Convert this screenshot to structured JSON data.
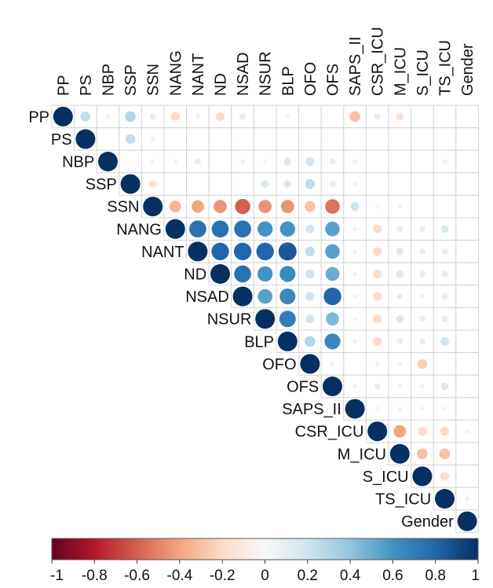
{
  "chart_data": {
    "type": "heatmap",
    "subtype": "correlation-matrix-upper-triangle",
    "variables": [
      "PP",
      "PS",
      "NBP",
      "SSP",
      "SSN",
      "NANG",
      "NANT",
      "ND",
      "NSAD",
      "NSUR",
      "BLP",
      "OFO",
      "OFS",
      "SAPS_II",
      "CSR_ICU",
      "M_ICU",
      "S_ICU",
      "TS_ICU",
      "Gender"
    ],
    "marker": "circle",
    "color_scale": {
      "range": [
        -1,
        1
      ],
      "ticks": [
        "-1",
        "-0.8",
        "-0.6",
        "-0.4",
        "-0.2",
        "0",
        "0.2",
        "0.4",
        "0.6",
        "0.8",
        "1"
      ],
      "negative_color": "#67001f",
      "zero_color": "#f7f7f7",
      "positive_color": "#053061"
    },
    "correlations": [
      {
        "row": "PP",
        "col": "PS",
        "value": 0.25
      },
      {
        "row": "PP",
        "col": "NBP",
        "value": 0.05
      },
      {
        "row": "PP",
        "col": "SSP",
        "value": 0.3
      },
      {
        "row": "PP",
        "col": "SSN",
        "value": -0.1
      },
      {
        "row": "PP",
        "col": "NANG",
        "value": -0.2
      },
      {
        "row": "PP",
        "col": "NANT",
        "value": -0.05
      },
      {
        "row": "PP",
        "col": "ND",
        "value": -0.2
      },
      {
        "row": "PP",
        "col": "NSAD",
        "value": -0.1
      },
      {
        "row": "PP",
        "col": "BLP",
        "value": 0.05
      },
      {
        "row": "PP",
        "col": "SAPS_II",
        "value": -0.3
      },
      {
        "row": "PP",
        "col": "CSR_ICU",
        "value": 0.1
      },
      {
        "row": "PP",
        "col": "M_ICU",
        "value": -0.15
      },
      {
        "row": "PS",
        "col": "SSP",
        "value": 0.25
      },
      {
        "row": "PS",
        "col": "SSN",
        "value": -0.05
      },
      {
        "row": "NBP",
        "col": "SSN",
        "value": 0.05
      },
      {
        "row": "NBP",
        "col": "NANG",
        "value": 0.05
      },
      {
        "row": "NBP",
        "col": "NANT",
        "value": 0.1
      },
      {
        "row": "NBP",
        "col": "NSAD",
        "value": 0.05
      },
      {
        "row": "NBP",
        "col": "NSUR",
        "value": 0.05
      },
      {
        "row": "NBP",
        "col": "BLP",
        "value": 0.15
      },
      {
        "row": "NBP",
        "col": "OFO",
        "value": 0.2
      },
      {
        "row": "NBP",
        "col": "OFS",
        "value": 0.1
      },
      {
        "row": "NBP",
        "col": "SAPS_II",
        "value": 0.05
      },
      {
        "row": "NBP",
        "col": "TS_ICU",
        "value": 0.05
      },
      {
        "row": "SSP",
        "col": "SSN",
        "value": -0.15
      },
      {
        "row": "SSP",
        "col": "NSUR",
        "value": 0.15
      },
      {
        "row": "SSP",
        "col": "BLP",
        "value": 0.15
      },
      {
        "row": "SSP",
        "col": "OFO",
        "value": 0.25
      },
      {
        "row": "SSP",
        "col": "OFS",
        "value": 0.1
      },
      {
        "row": "SSP",
        "col": "SAPS_II",
        "value": 0.05
      },
      {
        "row": "SSN",
        "col": "NANG",
        "value": -0.35
      },
      {
        "row": "SSN",
        "col": "NANT",
        "value": -0.4
      },
      {
        "row": "SSN",
        "col": "ND",
        "value": -0.45
      },
      {
        "row": "SSN",
        "col": "NSAD",
        "value": -0.6
      },
      {
        "row": "SSN",
        "col": "NSUR",
        "value": -0.45
      },
      {
        "row": "SSN",
        "col": "BLP",
        "value": -0.45
      },
      {
        "row": "SSN",
        "col": "OFO",
        "value": -0.3
      },
      {
        "row": "SSN",
        "col": "OFS",
        "value": -0.55
      },
      {
        "row": "SSN",
        "col": "SAPS_II",
        "value": 0.2
      },
      {
        "row": "SSN",
        "col": "CSR_ICU",
        "value": 0.05
      },
      {
        "row": "SSN",
        "col": "M_ICU",
        "value": 0.05
      },
      {
        "row": "NANG",
        "col": "NANT",
        "value": 0.75
      },
      {
        "row": "NANG",
        "col": "ND",
        "value": 0.75
      },
      {
        "row": "NANG",
        "col": "NSAD",
        "value": 0.75
      },
      {
        "row": "NANG",
        "col": "NSUR",
        "value": 0.6
      },
      {
        "row": "NANG",
        "col": "BLP",
        "value": 0.6
      },
      {
        "row": "NANG",
        "col": "OFO",
        "value": 0.2
      },
      {
        "row": "NANG",
        "col": "OFS",
        "value": 0.55
      },
      {
        "row": "NANG",
        "col": "SAPS_II",
        "value": -0.05
      },
      {
        "row": "NANG",
        "col": "CSR_ICU",
        "value": -0.2
      },
      {
        "row": "NANG",
        "col": "M_ICU",
        "value": 0.1
      },
      {
        "row": "NANG",
        "col": "S_ICU",
        "value": -0.1
      },
      {
        "row": "NANG",
        "col": "TS_ICU",
        "value": 0.15
      },
      {
        "row": "NANT",
        "col": "ND",
        "value": 0.8
      },
      {
        "row": "NANT",
        "col": "NSAD",
        "value": 0.8
      },
      {
        "row": "NANT",
        "col": "NSUR",
        "value": 0.8
      },
      {
        "row": "NANT",
        "col": "BLP",
        "value": 0.85
      },
      {
        "row": "NANT",
        "col": "OFO",
        "value": 0.25
      },
      {
        "row": "NANT",
        "col": "OFS",
        "value": 0.55
      },
      {
        "row": "NANT",
        "col": "SAPS_II",
        "value": -0.05
      },
      {
        "row": "NANT",
        "col": "CSR_ICU",
        "value": -0.2
      },
      {
        "row": "NANT",
        "col": "M_ICU",
        "value": 0.15
      },
      {
        "row": "NANT",
        "col": "S_ICU",
        "value": -0.1
      },
      {
        "row": "NANT",
        "col": "TS_ICU",
        "value": 0.1
      },
      {
        "row": "ND",
        "col": "NSAD",
        "value": 0.75
      },
      {
        "row": "ND",
        "col": "NSUR",
        "value": 0.6
      },
      {
        "row": "ND",
        "col": "BLP",
        "value": 0.65
      },
      {
        "row": "ND",
        "col": "OFO",
        "value": 0.2
      },
      {
        "row": "ND",
        "col": "OFS",
        "value": 0.5
      },
      {
        "row": "ND",
        "col": "SAPS_II",
        "value": -0.05
      },
      {
        "row": "ND",
        "col": "CSR_ICU",
        "value": -0.2
      },
      {
        "row": "ND",
        "col": "M_ICU",
        "value": 0.15
      },
      {
        "row": "ND",
        "col": "S_ICU",
        "value": -0.1
      },
      {
        "row": "ND",
        "col": "TS_ICU",
        "value": 0.1
      },
      {
        "row": "NSAD",
        "col": "NSUR",
        "value": 0.55
      },
      {
        "row": "NSAD",
        "col": "BLP",
        "value": 0.65
      },
      {
        "row": "NSAD",
        "col": "OFO",
        "value": 0.2
      },
      {
        "row": "NSAD",
        "col": "OFS",
        "value": 0.8
      },
      {
        "row": "NSAD",
        "col": "SAPS_II",
        "value": -0.05
      },
      {
        "row": "NSAD",
        "col": "CSR_ICU",
        "value": -0.2
      },
      {
        "row": "NSAD",
        "col": "M_ICU",
        "value": 0.1
      },
      {
        "row": "NSAD",
        "col": "S_ICU",
        "value": -0.05
      },
      {
        "row": "NSAD",
        "col": "TS_ICU",
        "value": 0.1
      },
      {
        "row": "NSUR",
        "col": "BLP",
        "value": 0.7
      },
      {
        "row": "NSUR",
        "col": "OFO",
        "value": 0.2
      },
      {
        "row": "NSUR",
        "col": "OFS",
        "value": 0.45
      },
      {
        "row": "NSUR",
        "col": "SAPS_II",
        "value": -0.05
      },
      {
        "row": "NSUR",
        "col": "CSR_ICU",
        "value": -0.2
      },
      {
        "row": "NSUR",
        "col": "M_ICU",
        "value": 0.15
      },
      {
        "row": "NSUR",
        "col": "S_ICU",
        "value": -0.1
      },
      {
        "row": "NSUR",
        "col": "TS_ICU",
        "value": 0.1
      },
      {
        "row": "BLP",
        "col": "OFO",
        "value": 0.3
      },
      {
        "row": "BLP",
        "col": "OFS",
        "value": 0.65
      },
      {
        "row": "BLP",
        "col": "SAPS_II",
        "value": -0.05
      },
      {
        "row": "BLP",
        "col": "CSR_ICU",
        "value": -0.2
      },
      {
        "row": "BLP",
        "col": "M_ICU",
        "value": 0.1
      },
      {
        "row": "BLP",
        "col": "S_ICU",
        "value": -0.1
      },
      {
        "row": "BLP",
        "col": "TS_ICU",
        "value": 0.2
      },
      {
        "row": "OFO",
        "col": "OFS",
        "value": 0.05
      },
      {
        "row": "OFO",
        "col": "CSR_ICU",
        "value": -0.05
      },
      {
        "row": "OFO",
        "col": "M_ICU",
        "value": -0.05
      },
      {
        "row": "OFO",
        "col": "S_ICU",
        "value": -0.25
      },
      {
        "row": "OFS",
        "col": "SAPS_II",
        "value": -0.05
      },
      {
        "row": "OFS",
        "col": "CSR_ICU",
        "value": -0.1
      },
      {
        "row": "OFS",
        "col": "M_ICU",
        "value": 0.05
      },
      {
        "row": "OFS",
        "col": "S_ICU",
        "value": -0.05
      },
      {
        "row": "OFS",
        "col": "TS_ICU",
        "value": 0.15
      },
      {
        "row": "SAPS_II",
        "col": "CSR_ICU",
        "value": -0.05
      },
      {
        "row": "SAPS_II",
        "col": "M_ICU",
        "value": 0.05
      },
      {
        "row": "SAPS_II",
        "col": "S_ICU",
        "value": -0.05
      },
      {
        "row": "SAPS_II",
        "col": "TS_ICU",
        "value": 0.05
      },
      {
        "row": "CSR_ICU",
        "col": "M_ICU",
        "value": -0.4
      },
      {
        "row": "CSR_ICU",
        "col": "S_ICU",
        "value": -0.2
      },
      {
        "row": "CSR_ICU",
        "col": "TS_ICU",
        "value": -0.2
      },
      {
        "row": "CSR_ICU",
        "col": "Gender",
        "value": 0.05
      },
      {
        "row": "M_ICU",
        "col": "S_ICU",
        "value": -0.3
      },
      {
        "row": "M_ICU",
        "col": "TS_ICU",
        "value": -0.3
      },
      {
        "row": "S_ICU",
        "col": "TS_ICU",
        "value": -0.2
      },
      {
        "row": "TS_ICU",
        "col": "Gender",
        "value": 0.05
      }
    ]
  }
}
